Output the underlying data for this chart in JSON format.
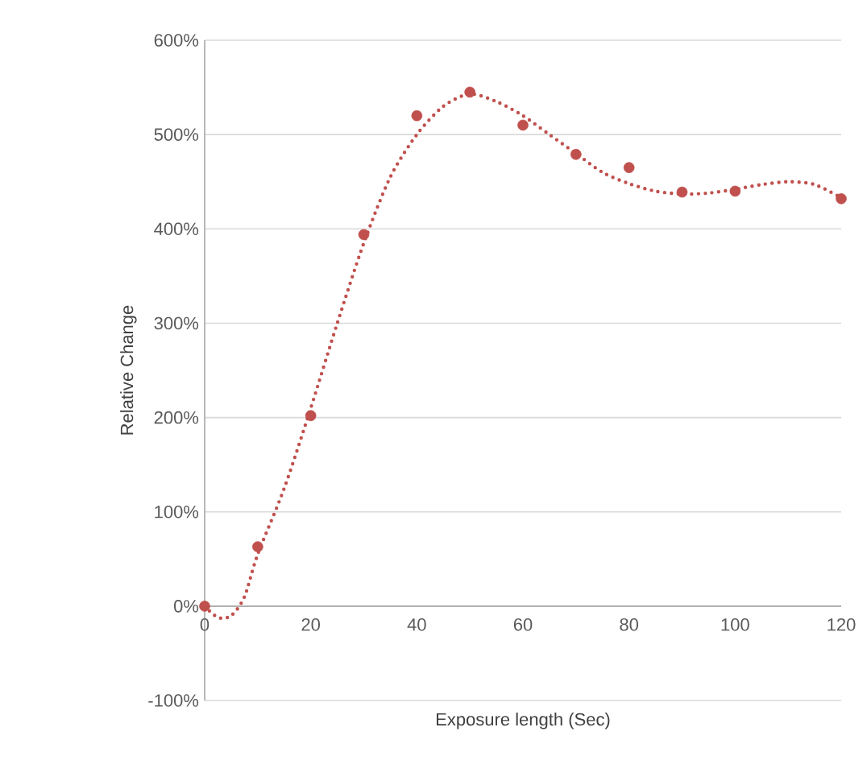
{
  "chart_data": {
    "type": "scatter",
    "xlabel": "Exposure length (Sec)",
    "ylabel": "Relative Change",
    "xlim": [
      0,
      120
    ],
    "xticks": [
      0,
      20,
      40,
      60,
      80,
      100,
      120
    ],
    "ylim": [
      -100,
      600
    ],
    "yticks": [
      {
        "value": -100,
        "label": "-100%"
      },
      {
        "value": 0,
        "label": "0%"
      },
      {
        "value": 100,
        "label": "100%"
      },
      {
        "value": 200,
        "label": "200%"
      },
      {
        "value": 300,
        "label": "300%"
      },
      {
        "value": 400,
        "label": "400%"
      },
      {
        "value": 500,
        "label": "500%"
      },
      {
        "value": 600,
        "label": "600%"
      }
    ],
    "grid": "y",
    "marker": "circle",
    "series": [
      {
        "color": "#c0504d",
        "x": [
          0,
          10,
          20,
          30,
          40,
          50,
          60,
          70,
          80,
          90,
          100,
          120
        ],
        "values": [
          0,
          63,
          202,
          394,
          520,
          545,
          510,
          479,
          465,
          439,
          440,
          432
        ]
      },
      {
        "type": "line",
        "marker": "none",
        "line_style": "dotted",
        "color": "#c0504d",
        "x": [
          0,
          2.5,
          5,
          7.5,
          10,
          15,
          20,
          25,
          30,
          35,
          40,
          45,
          50,
          55,
          60,
          65,
          70,
          75,
          80,
          85,
          90,
          95,
          100,
          105,
          110,
          115,
          120
        ],
        "values": [
          0,
          -12,
          -10,
          10,
          55,
          125,
          210,
          300,
          385,
          455,
          500,
          530,
          543,
          535,
          520,
          500,
          480,
          460,
          448,
          440,
          437,
          438,
          442,
          447,
          450,
          447,
          433
        ]
      }
    ]
  }
}
